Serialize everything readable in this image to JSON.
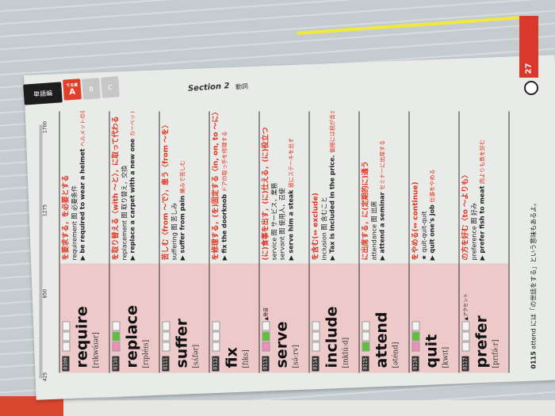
{
  "header": {
    "tab_words": "単語編",
    "tab_level_prefix": "でる度",
    "tab_a": "A",
    "tab_b": "B",
    "tab_c": "C",
    "section": "Section 2",
    "part_of_speech": "動詞",
    "page": "27"
  },
  "progress": {
    "ticks": [
      "425",
      "850",
      "1275",
      "1700"
    ]
  },
  "entries": [
    {
      "num": "0109",
      "word": "require",
      "pron": "[rɪkwáɪər]",
      "checks": [
        "",
        "",
        ""
      ],
      "note": "",
      "meaning": "を要求する，を必要とする",
      "derived": [
        "requirement 图 必要条件"
      ],
      "example": "▶ be required to wear a helmet",
      "translation": "ヘルメットの着用が求められる"
    },
    {
      "num": "0110",
      "word": "replace",
      "pron": "[rɪpléɪs]",
      "checks": [
        "pink",
        "green",
        ""
      ],
      "note": "",
      "meaning": "を取り替える〈with ～と〉，に取って代わる",
      "derived": [
        "replacement 图 取り替え，交換"
      ],
      "example": "▶ replace a carpet with a new one",
      "translation": "カーペットを新しいものと取り替える"
    },
    {
      "num": "0111",
      "word": "suffer",
      "pron": "[sʌ́fər]",
      "checks": [
        "",
        "",
        ""
      ],
      "note": "",
      "meaning": "苦しむ〈from ～で〉，患う〈from ～を〉",
      "derived": [
        "suffering 图 苦しみ"
      ],
      "example": "▶ suffer from pain",
      "translation": "痛みで苦しむ"
    },
    {
      "num": "0112",
      "word": "fix",
      "pron": "[fɪks]",
      "checks": [
        "",
        "",
        ""
      ],
      "note": "",
      "meaning": "を修理する，(を)固定する〈in, on, to ～に〉",
      "derived": [],
      "example": "▶ fix the doorknob",
      "translation": "ドアの取っ手を修理する"
    },
    {
      "num": "0113",
      "word": "serve",
      "pron": "[sə́ːrv]",
      "checks": [
        "pink",
        "green",
        ""
      ],
      "note": "▲発音",
      "meaning": "(に)食事を出す，(に)仕える，(に)役立つ",
      "derived": [
        "service 图 サービス，業務",
        "servant 图 使用人，召使"
      ],
      "example": "▶ serve him a steak",
      "translation": "彼にステーキを出す"
    },
    {
      "num": "0114",
      "word": "include",
      "pron": "[ɪnklúːd]",
      "checks": [
        "",
        "",
        ""
      ],
      "note": "",
      "meaning": "を含む(⇔ exclude)",
      "derived": [
        "inclusion 图 含むこと"
      ],
      "example": "▶ Tax is included in the price.",
      "translation": "価格には税が含まれている。"
    },
    {
      "num": "0115",
      "word": "attend",
      "pron": "[əténd]",
      "checks": [
        "green",
        "",
        ""
      ],
      "note": "",
      "meaning": "に出席する，に(定期的に)通う",
      "derived": [
        "attendance 图 出席"
      ],
      "example": "▶ attend a seminar",
      "translation": "セミナーに出席する"
    },
    {
      "num": "0116",
      "word": "quit",
      "pron": "[kwɪt]",
      "checks": [
        "pink",
        "green",
        ""
      ],
      "note": "",
      "meaning": "をやめる(⇔ continue)",
      "derived": [
        "★ quit-quit-quit"
      ],
      "example": "▶ quit one's job",
      "translation": "仕事をやめる"
    },
    {
      "num": "0117",
      "word": "prefer",
      "pron": "[prɪfə́ːr]",
      "checks": [
        "",
        "",
        ""
      ],
      "note": "▲アクセント",
      "meaning": "の方を好む〈to ～よりも〉",
      "derived": [
        "preference 图 好み"
      ],
      "example": "▶ prefer fish to meat",
      "translation": "肉よりも魚を好む"
    }
  ],
  "footer": {
    "ref": "0115",
    "text": "attend には「の世話をする」という意味もあるよ。"
  }
}
